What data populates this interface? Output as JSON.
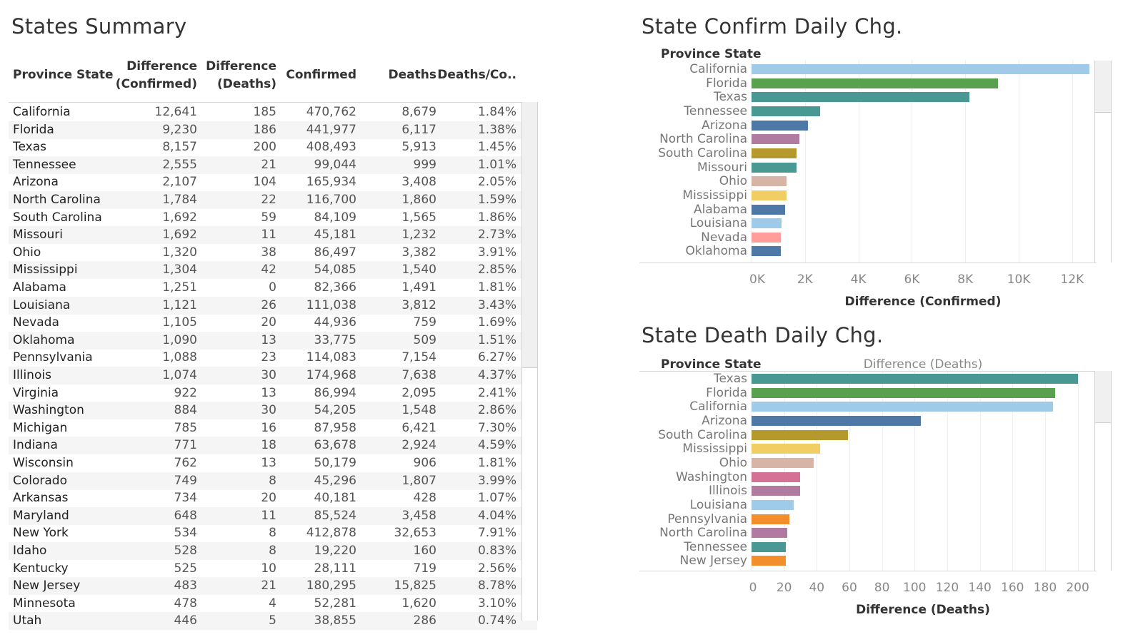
{
  "table_panel": {
    "title": "States Summary",
    "columns": [
      "Province State",
      "Difference\n(Confirmed)",
      "Difference\n(Deaths)",
      "Confirmed",
      "Deaths",
      "Deaths/Co.."
    ],
    "column_lines": [
      [
        "Province State"
      ],
      [
        "Difference",
        "(Confirmed)"
      ],
      [
        "Difference",
        "(Deaths)"
      ],
      [
        "Confirmed"
      ],
      [
        "Deaths"
      ],
      [
        "Deaths/Co.."
      ]
    ],
    "rows": [
      [
        "California",
        "12,641",
        "185",
        "470,762",
        "8,679",
        "1.84%"
      ],
      [
        "Florida",
        "9,230",
        "186",
        "441,977",
        "6,117",
        "1.38%"
      ],
      [
        "Texas",
        "8,157",
        "200",
        "408,493",
        "5,913",
        "1.45%"
      ],
      [
        "Tennessee",
        "2,555",
        "21",
        "99,044",
        "999",
        "1.01%"
      ],
      [
        "Arizona",
        "2,107",
        "104",
        "165,934",
        "3,408",
        "2.05%"
      ],
      [
        "North Carolina",
        "1,784",
        "22",
        "116,700",
        "1,860",
        "1.59%"
      ],
      [
        "South Carolina",
        "1,692",
        "59",
        "84,109",
        "1,565",
        "1.86%"
      ],
      [
        "Missouri",
        "1,692",
        "11",
        "45,181",
        "1,232",
        "2.73%"
      ],
      [
        "Ohio",
        "1,320",
        "38",
        "86,497",
        "3,382",
        "3.91%"
      ],
      [
        "Mississippi",
        "1,304",
        "42",
        "54,085",
        "1,540",
        "2.85%"
      ],
      [
        "Alabama",
        "1,251",
        "0",
        "82,366",
        "1,491",
        "1.81%"
      ],
      [
        "Louisiana",
        "1,121",
        "26",
        "111,038",
        "3,812",
        "3.43%"
      ],
      [
        "Nevada",
        "1,105",
        "20",
        "44,936",
        "759",
        "1.69%"
      ],
      [
        "Oklahoma",
        "1,090",
        "13",
        "33,775",
        "509",
        "1.51%"
      ],
      [
        "Pennsylvania",
        "1,088",
        "23",
        "114,083",
        "7,154",
        "6.27%"
      ],
      [
        "Illinois",
        "1,074",
        "30",
        "174,968",
        "7,638",
        "4.37%"
      ],
      [
        "Virginia",
        "922",
        "13",
        "86,994",
        "2,095",
        "2.41%"
      ],
      [
        "Washington",
        "884",
        "30",
        "54,205",
        "1,548",
        "2.86%"
      ],
      [
        "Michigan",
        "785",
        "16",
        "87,958",
        "6,421",
        "7.30%"
      ],
      [
        "Indiana",
        "771",
        "18",
        "63,678",
        "2,924",
        "4.59%"
      ],
      [
        "Wisconsin",
        "762",
        "13",
        "50,179",
        "906",
        "1.81%"
      ],
      [
        "Colorado",
        "749",
        "8",
        "45,296",
        "1,807",
        "3.99%"
      ],
      [
        "Arkansas",
        "734",
        "20",
        "40,181",
        "428",
        "1.07%"
      ],
      [
        "Maryland",
        "648",
        "11",
        "85,524",
        "3,458",
        "4.04%"
      ],
      [
        "New York",
        "534",
        "8",
        "412,878",
        "32,653",
        "7.91%"
      ],
      [
        "Idaho",
        "528",
        "8",
        "19,220",
        "160",
        "0.83%"
      ],
      [
        "Kentucky",
        "525",
        "10",
        "28,111",
        "719",
        "2.56%"
      ],
      [
        "New Jersey",
        "483",
        "21",
        "180,295",
        "15,825",
        "8.78%"
      ],
      [
        "Minnesota",
        "478",
        "4",
        "52,281",
        "1,620",
        "3.10%"
      ],
      [
        "Utah",
        "446",
        "5",
        "38,855",
        "286",
        "0.74%"
      ]
    ]
  },
  "confirm_panel": {
    "title": "State Confirm Daily Chg.",
    "row_header": "Province State",
    "axis_title": "Difference (Confirmed)"
  },
  "death_panel": {
    "title": "State Death Daily Chg.",
    "row_header": "Province State",
    "top_axis_label": "Difference (Deaths)",
    "axis_title": "Difference (Deaths)"
  },
  "colors": {
    "California": "#a0cbe8",
    "Florida": "#59a14f",
    "Texas": "#499894",
    "Tennessee": "#499894",
    "Arizona": "#4e79a7",
    "North Carolina": "#b07aa1",
    "South Carolina": "#b6992d",
    "Missouri": "#499894",
    "Ohio": "#d7b5a6",
    "Mississippi": "#f1ce63",
    "Alabama": "#4e79a7",
    "Louisiana": "#a0cbe8",
    "Nevada": "#ff9d9a",
    "Oklahoma": "#4e79a7",
    "Pennsylvania": "#f28e2b",
    "Washington": "#d37295",
    "Illinois": "#b07aa1",
    "New Jersey": "#f28e2b"
  },
  "chart_data": [
    {
      "type": "bar",
      "orientation": "horizontal",
      "title": "State Confirm Daily Chg.",
      "xlabel": "Difference (Confirmed)",
      "ylabel": "Province State",
      "categories": [
        "California",
        "Florida",
        "Texas",
        "Tennessee",
        "Arizona",
        "North Carolina",
        "South Carolina",
        "Missouri",
        "Ohio",
        "Mississippi",
        "Alabama",
        "Louisiana",
        "Nevada",
        "Oklahoma"
      ],
      "values": [
        12641,
        9230,
        8157,
        2555,
        2107,
        1784,
        1692,
        1692,
        1320,
        1304,
        1251,
        1121,
        1105,
        1090
      ],
      "xlim": [
        0,
        13500
      ],
      "ticks": [
        0,
        2000,
        4000,
        6000,
        8000,
        10000,
        12000
      ],
      "tick_labels": [
        "0K",
        "2K",
        "4K",
        "6K",
        "8K",
        "10K",
        "12K"
      ],
      "grid": true
    },
    {
      "type": "bar",
      "orientation": "horizontal",
      "title": "State Death Daily Chg.",
      "xlabel": "Difference (Deaths)",
      "ylabel": "Province State",
      "categories": [
        "Texas",
        "Florida",
        "California",
        "Arizona",
        "South Carolina",
        "Mississippi",
        "Ohio",
        "Washington",
        "Illinois",
        "Louisiana",
        "Pennsylvania",
        "North Carolina",
        "Tennessee",
        "New Jersey"
      ],
      "values": [
        200,
        186,
        185,
        104,
        59,
        42,
        38,
        30,
        30,
        26,
        23,
        22,
        21,
        21
      ],
      "xlim": [
        0,
        205
      ],
      "ticks": [
        0,
        20,
        40,
        60,
        80,
        100,
        120,
        140,
        160,
        180,
        200
      ],
      "tick_labels": [
        "0",
        "20",
        "40",
        "60",
        "80",
        "100",
        "120",
        "140",
        "160",
        "180",
        "200"
      ],
      "grid": true
    }
  ]
}
